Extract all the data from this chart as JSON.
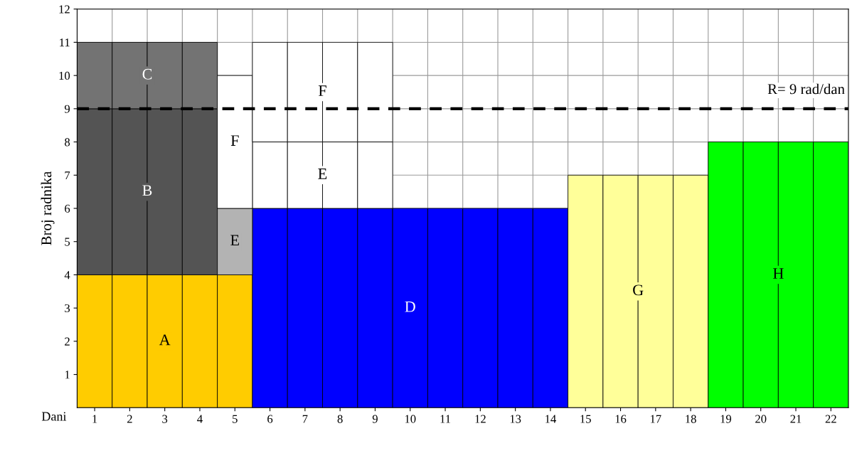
{
  "chart_data": {
    "type": "bar",
    "stacked": true,
    "xlabel": "Dani",
    "ylabel": "Broj radnika",
    "categories": [
      "1",
      "2",
      "3",
      "4",
      "5",
      "6",
      "7",
      "8",
      "9",
      "10",
      "11",
      "12",
      "13",
      "14",
      "15",
      "16",
      "17",
      "18",
      "19",
      "20",
      "21",
      "22"
    ],
    "series": [
      {
        "name": "A",
        "color": "#ffcc00",
        "values": [
          4,
          4,
          4,
          4,
          4,
          0,
          0,
          0,
          0,
          0,
          0,
          0,
          0,
          0,
          0,
          0,
          0,
          0,
          0,
          0,
          0,
          0
        ]
      },
      {
        "name": "B",
        "color": "#545454",
        "values": [
          5,
          5,
          5,
          5,
          0,
          0,
          0,
          0,
          0,
          0,
          0,
          0,
          0,
          0,
          0,
          0,
          0,
          0,
          0,
          0,
          0,
          0
        ]
      },
      {
        "name": "C",
        "color": "#737373",
        "values": [
          2,
          2,
          2,
          2,
          0,
          0,
          0,
          0,
          0,
          0,
          0,
          0,
          0,
          0,
          0,
          0,
          0,
          0,
          0,
          0,
          0,
          0
        ]
      },
      {
        "name": "D",
        "color": "#0000ff",
        "values": [
          0,
          0,
          0,
          0,
          0,
          6,
          6,
          6,
          6,
          6,
          6,
          6,
          6,
          6,
          0,
          0,
          0,
          0,
          0,
          0,
          0,
          0
        ]
      },
      {
        "name": "E",
        "colors": [
          "#ffffff",
          "#ffffff",
          "#ffffff",
          "#ffffff",
          "#b3b3b3",
          "#ffffff",
          "#ffffff",
          "#ffffff",
          "#ffffff",
          "#ffffff",
          "#ffffff",
          "#ffffff",
          "#ffffff",
          "#ffffff",
          "#ffffff",
          "#ffffff",
          "#ffffff",
          "#ffffff",
          "#ffffff",
          "#ffffff",
          "#ffffff",
          "#ffffff"
        ],
        "values": [
          0,
          0,
          0,
          0,
          2,
          2,
          2,
          2,
          2,
          0,
          0,
          0,
          0,
          0,
          0,
          0,
          0,
          0,
          0,
          0,
          0,
          0
        ]
      },
      {
        "name": "F",
        "color": "#ffffff",
        "values": [
          0,
          0,
          0,
          0,
          4,
          3,
          3,
          3,
          3,
          0,
          0,
          0,
          0,
          0,
          0,
          0,
          0,
          0,
          0,
          0,
          0,
          0
        ]
      },
      {
        "name": "G",
        "color": "#ffff99",
        "values": [
          0,
          0,
          0,
          0,
          0,
          0,
          0,
          0,
          0,
          0,
          0,
          0,
          0,
          0,
          7,
          7,
          7,
          7,
          0,
          0,
          0,
          0
        ]
      },
      {
        "name": "H",
        "color": "#00ff00",
        "values": [
          0,
          0,
          0,
          0,
          0,
          0,
          0,
          0,
          0,
          0,
          0,
          0,
          0,
          0,
          0,
          0,
          0,
          0,
          8,
          8,
          8,
          8
        ]
      }
    ],
    "ylim": [
      0,
      12
    ],
    "yticks": [
      1,
      2,
      3,
      4,
      5,
      6,
      7,
      8,
      9,
      10,
      11,
      12
    ],
    "grid": true,
    "ref_lines": [
      {
        "axis": "y",
        "value": 9,
        "label": "R= 9 rad/dan",
        "color": "#000000",
        "line_style": "dashed"
      }
    ]
  }
}
